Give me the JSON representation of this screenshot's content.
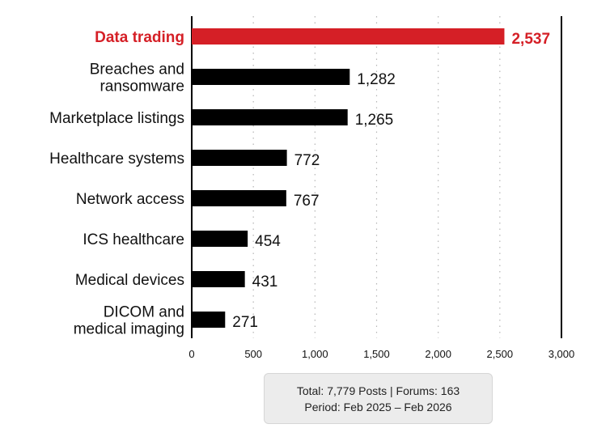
{
  "chart_data": {
    "type": "bar",
    "orientation": "horizontal",
    "categories": [
      [
        "Data trading"
      ],
      [
        "Breaches and",
        "ransomware"
      ],
      [
        "Marketplace listings"
      ],
      [
        "Healthcare systems"
      ],
      [
        "Network access"
      ],
      [
        "ICS healthcare"
      ],
      [
        "Medical devices"
      ],
      [
        "DICOM and",
        "medical imaging"
      ]
    ],
    "values": [
      2537,
      1282,
      1265,
      772,
      767,
      454,
      431,
      271
    ],
    "value_labels": [
      "2,537",
      "1,282",
      "1,265",
      "772",
      "767",
      "454",
      "431",
      "271"
    ],
    "highlight_index": 0,
    "xlim": [
      0,
      3000
    ],
    "xticks": [
      0,
      500,
      1000,
      1500,
      2000,
      2500,
      3000
    ],
    "xtick_labels": [
      "0",
      "500",
      "1,000",
      "1,500",
      "2,000",
      "2,500",
      "3,000"
    ],
    "grid": "vertical dotted",
    "colors": {
      "highlight": "#d51f26",
      "bar": "#000000",
      "grid": "#b5b5b5"
    }
  },
  "summary": {
    "line1": "Total: 7,779 Posts | Forums: 163",
    "line2": "Period: Feb 2025 – Feb 2026"
  }
}
